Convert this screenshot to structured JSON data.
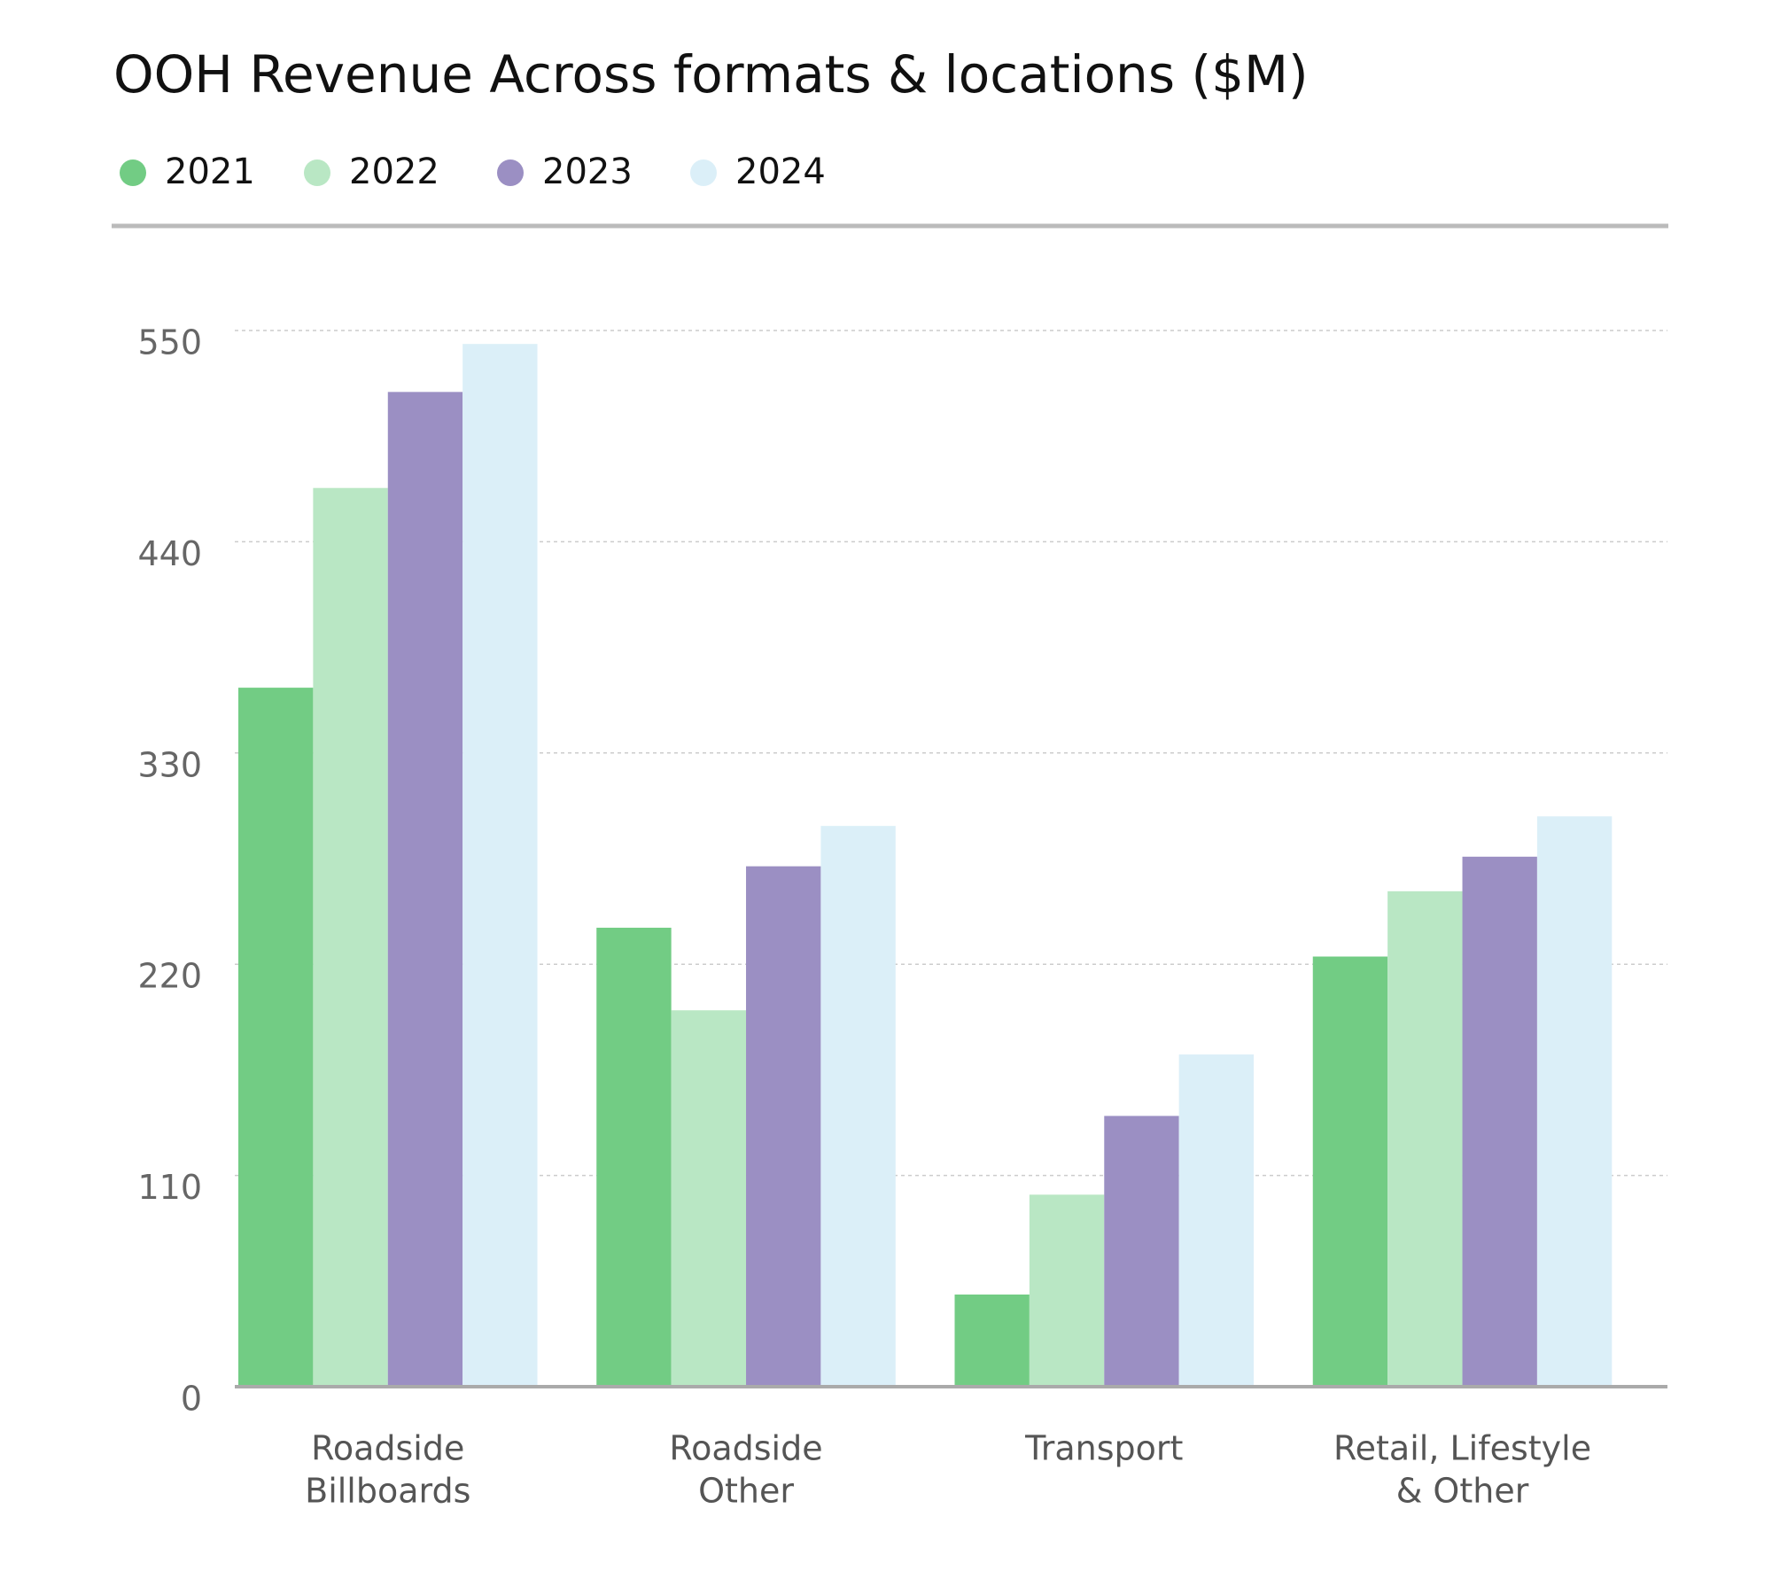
{
  "chart_data": {
    "type": "bar",
    "title": "OOH Revenue Across formats & locations ($M)",
    "categories": [
      [
        "Roadside",
        "Billboards"
      ],
      [
        "Roadside",
        "Other"
      ],
      [
        "Transport"
      ],
      [
        "Retail, Lifestyle",
        "& Other"
      ]
    ],
    "series": [
      {
        "name": "2021",
        "color": "#72cc84",
        "values": [
          364,
          239,
          48,
          224
        ]
      },
      {
        "name": "2022",
        "color": "#b9e7c4",
        "values": [
          468,
          196,
          100,
          258
        ]
      },
      {
        "name": "2023",
        "color": "#9b8fc3",
        "values": [
          518,
          271,
          141,
          276
        ]
      },
      {
        "name": "2024",
        "color": "#dbeff8",
        "values": [
          543,
          292,
          173,
          297
        ]
      }
    ],
    "ylim": [
      0,
      550
    ],
    "yticks": [
      0,
      110,
      220,
      330,
      440,
      550
    ],
    "grid": true
  }
}
